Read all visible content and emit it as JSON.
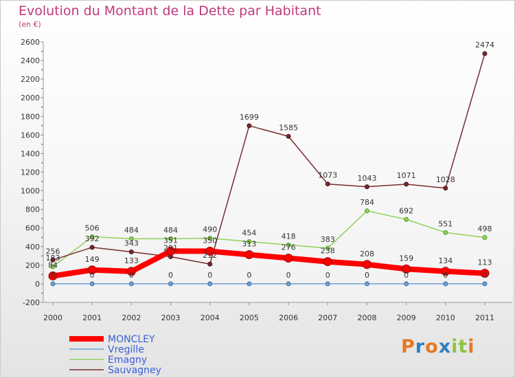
{
  "title": "Evolution du Montant de la Dette par Habitant",
  "unit": "(en €)",
  "logo": {
    "text": "Proxiti",
    "colors": [
      "#e87722",
      "#2f7fc1",
      "#e87722",
      "#2f7fc1",
      "#8cc63f",
      "#8cc63f",
      "#e87722"
    ]
  },
  "chart_data": {
    "type": "line",
    "title": "Evolution du Montant de la Dette par Habitant",
    "ylabel": "(en €)",
    "xlabel": "",
    "ylim": [
      -200,
      2600
    ],
    "ytick_step": 200,
    "grid": false,
    "legend_position": "bottom-left",
    "categories": [
      "2000",
      "2001",
      "2002",
      "2003",
      "2004",
      "2005",
      "2006",
      "2007",
      "2008",
      "2009",
      "2010",
      "2011"
    ],
    "series": [
      {
        "name": "MONCLEY",
        "color": "#ff0000",
        "values": [
          84,
          149,
          133,
          351,
          350,
          313,
          276,
          238,
          208,
          159,
          134,
          113
        ]
      },
      {
        "name": "Vregille",
        "color": "#6b9fd0",
        "values": [
          0,
          0,
          0,
          0,
          0,
          0,
          0,
          0,
          0,
          0,
          0,
          0
        ]
      },
      {
        "name": "Emagny",
        "color": "#8fd15a",
        "values": [
          183,
          506,
          484,
          484,
          490,
          454,
          418,
          383,
          784,
          692,
          551,
          498
        ]
      },
      {
        "name": "Sauvagney",
        "color": "#7a2a2e",
        "values": [
          256,
          392,
          343,
          291,
          212,
          1699,
          1585,
          1073,
          1043,
          1071,
          1028,
          2474
        ]
      }
    ]
  }
}
